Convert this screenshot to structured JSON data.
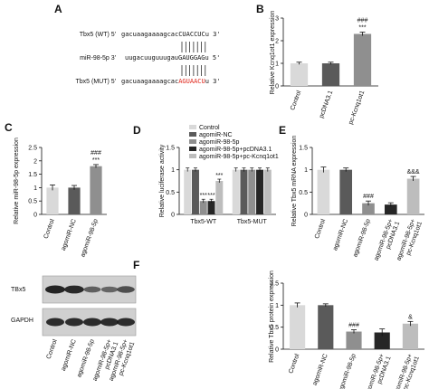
{
  "colors": {
    "bar_light": "#d9d9d9",
    "bar_mid": "#bdbdbd",
    "bar_gray": "#8f8f8f",
    "bar_dark": "#5a5a5a",
    "bar_black": "#262626",
    "mutant": "#e0261b",
    "text": "#111111"
  },
  "panels": {
    "A": {
      "label": "A",
      "rows": [
        {
          "name": "Tbx5 (WT) 5'",
          "seq": "gacuaagaaaagcacCUACCUCu 3'"
        },
        {
          "name": "miR-98-5p 3'",
          "seq": "uugacuuguuugauGAUGGAGu 5'"
        },
        {
          "name": "Tbx5 (MUT) 5'",
          "seq_prefix": "gacuaagaaaagcac",
          "seq_mut": "AGUAACU",
          "seq_suffix": "u 3'"
        }
      ]
    },
    "B": {
      "label": "B"
    },
    "C": {
      "label": "C"
    },
    "D": {
      "label": "D"
    },
    "E": {
      "label": "E"
    },
    "F": {
      "label": "F",
      "blot_labels": [
        "TBx5",
        "GAPDH"
      ],
      "lanes": [
        "Control",
        "agomiR-NC",
        "agomiR-98-5p",
        "agomiR-98-5p+\npcDNA3.1",
        "agomiR-98-5p+\npc-Kcnq1ot1"
      ]
    }
  },
  "chart_data": [
    {
      "id": "B",
      "type": "bar",
      "ylabel": "Relative Kcnq1ot1 expression",
      "ylim": [
        0,
        3
      ],
      "yticks": [
        0,
        1,
        2,
        3
      ],
      "categories": [
        "Control",
        "pcDNA3.1",
        "pc-Kcnq1ot1"
      ],
      "values": [
        1.0,
        1.0,
        2.3
      ],
      "errors": [
        0.05,
        0.05,
        0.08
      ],
      "annotations": [
        "",
        "",
        "###\n***"
      ]
    },
    {
      "id": "C",
      "type": "bar",
      "ylabel": "Relative miR-98-5p expression",
      "ylim": [
        0,
        2.5
      ],
      "yticks": [
        0,
        0.5,
        1.0,
        1.5,
        2.0,
        2.5
      ],
      "categories": [
        "Control",
        "agomiR-NC",
        "agomiR-98-5p"
      ],
      "values": [
        1.0,
        1.0,
        1.8
      ],
      "errors": [
        0.1,
        0.08,
        0.06
      ],
      "annotations": [
        "",
        "",
        "###\n***"
      ]
    },
    {
      "id": "D",
      "type": "bar",
      "ylabel": "Relative luciferase activity",
      "ylim": [
        0,
        1.5
      ],
      "yticks": [
        0,
        0.5,
        1.0,
        1.5
      ],
      "categories": [
        "Tbx5-WT",
        "Tbx5-MUT"
      ],
      "series": [
        {
          "name": "Control",
          "values": [
            1.0,
            1.0
          ],
          "errors": [
            0.04,
            0.04
          ],
          "annotations": [
            "",
            ""
          ]
        },
        {
          "name": "agomiR-NC",
          "values": [
            1.0,
            1.0
          ],
          "errors": [
            0.04,
            0.04
          ],
          "annotations": [
            "",
            ""
          ]
        },
        {
          "name": "agomiR-98-5p",
          "values": [
            0.3,
            1.0
          ],
          "errors": [
            0.04,
            0.04
          ],
          "annotations": [
            "***",
            ""
          ]
        },
        {
          "name": "agomiR-98-5p+pcDNA3.1",
          "values": [
            0.3,
            1.0
          ],
          "errors": [
            0.04,
            0.04
          ],
          "annotations": [
            "***",
            ""
          ]
        },
        {
          "name": "agomiR-98-5p+pc-Kcnq1ot1",
          "values": [
            0.75,
            1.0
          ],
          "errors": [
            0.04,
            0.04
          ],
          "annotations": [
            "***",
            ""
          ]
        }
      ],
      "legend": "top-right"
    },
    {
      "id": "E",
      "type": "bar",
      "ylabel": "Relative Tbx5 mRNA expression",
      "ylim": [
        0,
        1.5
      ],
      "yticks": [
        0,
        0.5,
        1.0,
        1.5
      ],
      "categories": [
        "Control",
        "agomiR-NC",
        "agomiR-98-5p",
        "agomiR-98-5p+\npcDNA3.1",
        "agomiR-98-5p+\npc-Kcnq1ot1"
      ],
      "values": [
        1.0,
        1.0,
        0.25,
        0.22,
        0.8
      ],
      "errors": [
        0.06,
        0.04,
        0.05,
        0.04,
        0.05
      ],
      "annotations": [
        "",
        "",
        "###",
        "",
        "&&&"
      ]
    },
    {
      "id": "F",
      "type": "bar",
      "ylabel": "Relative Tbx5 protein expression",
      "ylim": [
        0,
        1.5
      ],
      "yticks": [
        0,
        0.5,
        1.0,
        1.5
      ],
      "categories": [
        "Control",
        "agomiR-NC",
        "agomiR-98-5p",
        "agomiR-98-5p+\npcDNA3.1",
        "agomiR-98-5p+\npc-Kcnq1ot1"
      ],
      "values": [
        1.0,
        1.0,
        0.4,
        0.38,
        0.58
      ],
      "errors": [
        0.05,
        0.03,
        0.04,
        0.08,
        0.05
      ],
      "annotations": [
        "",
        "",
        "###",
        "",
        "&"
      ]
    }
  ]
}
